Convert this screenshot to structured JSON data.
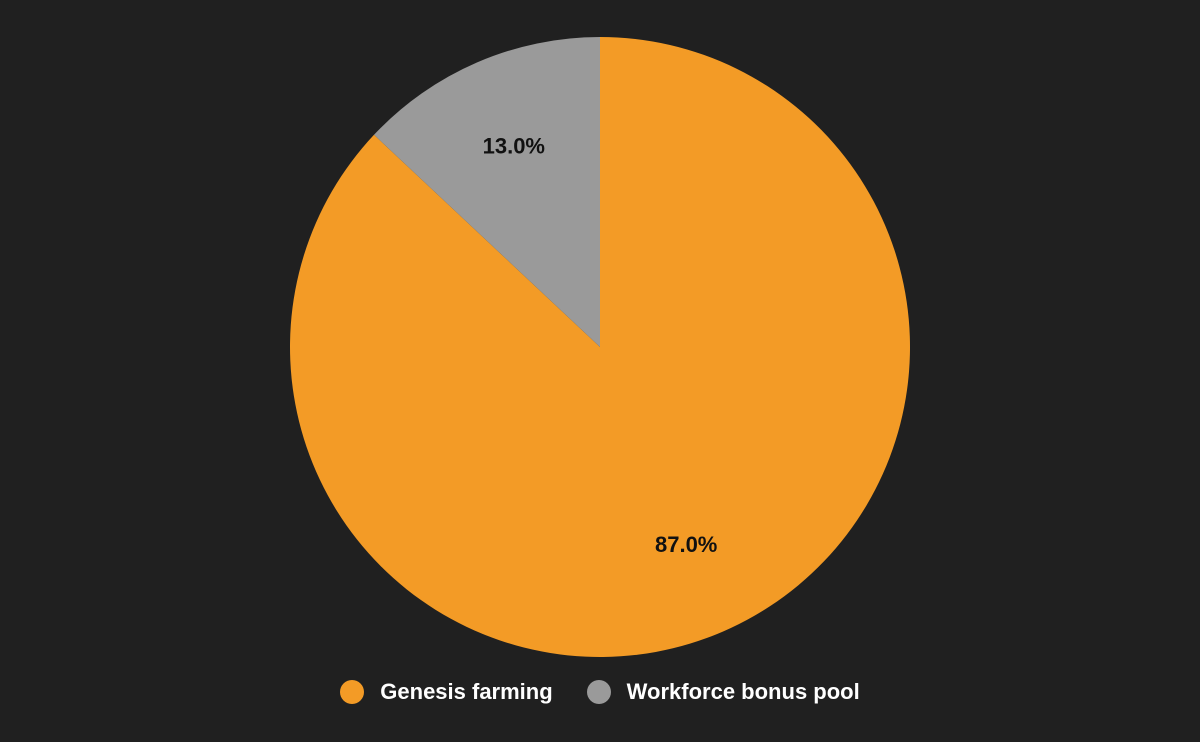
{
  "chart_data": {
    "type": "pie",
    "title": "",
    "slices": [
      {
        "name": "Genesis farming",
        "value": 87.0,
        "label": "87.0%",
        "color": "#F39B26"
      },
      {
        "name": "Workforce bonus pool",
        "value": 13.0,
        "label": "13.0%",
        "color": "#9A9A9A"
      }
    ],
    "start_angle": "12 o'clock",
    "direction": "clockwise",
    "legend_position": "bottom"
  },
  "legend": {
    "items": [
      {
        "label": "Genesis farming",
        "color": "#F39B26"
      },
      {
        "label": "Workforce bonus pool",
        "color": "#9A9A9A"
      }
    ]
  },
  "colors": {
    "background": "#202020",
    "label_text": "#111111",
    "legend_text": "#FFFFFF"
  }
}
